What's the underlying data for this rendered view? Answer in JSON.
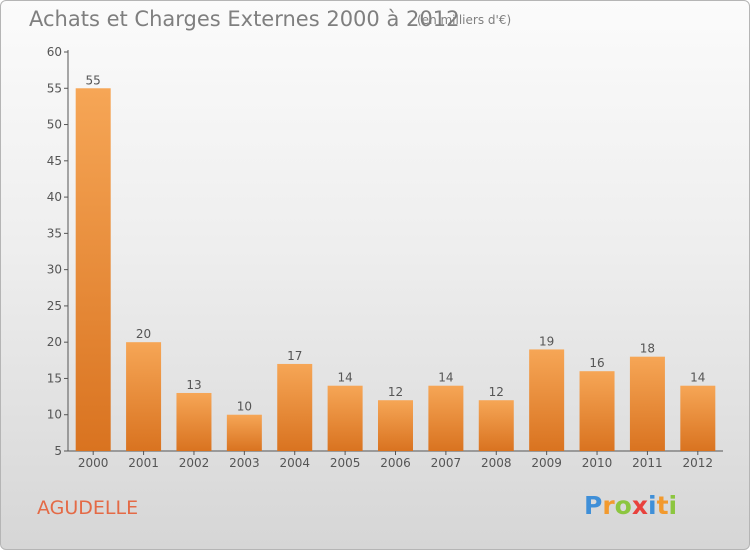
{
  "chart_data": {
    "type": "bar",
    "title": "Achats et Charges Externes 2000 à 2012",
    "subtitle": "(en milliers d'€)",
    "categories": [
      "2000",
      "2001",
      "2002",
      "2003",
      "2004",
      "2005",
      "2006",
      "2007",
      "2008",
      "2009",
      "2010",
      "2011",
      "2012"
    ],
    "values": [
      55,
      20,
      13,
      10,
      17,
      14,
      12,
      14,
      12,
      19,
      16,
      18,
      14
    ],
    "ylim": [
      5,
      60
    ],
    "yticks": [
      5,
      10,
      15,
      20,
      25,
      30,
      35,
      40,
      45,
      50,
      55,
      60
    ],
    "grid": false,
    "legend": "none",
    "bar_color_top": "#f6a656",
    "bar_color_bottom": "#d97320"
  },
  "commune": "AGUDELLE",
  "logo": {
    "text": "Proxiti",
    "letters": [
      "P",
      "r",
      "o",
      "x",
      "i",
      "t",
      "i"
    ],
    "colors": [
      "#3f8fd8",
      "#f29a2e",
      "#8cc63f",
      "#e8413c",
      "#3f8fd8",
      "#f29a2e",
      "#8cc63f"
    ]
  }
}
